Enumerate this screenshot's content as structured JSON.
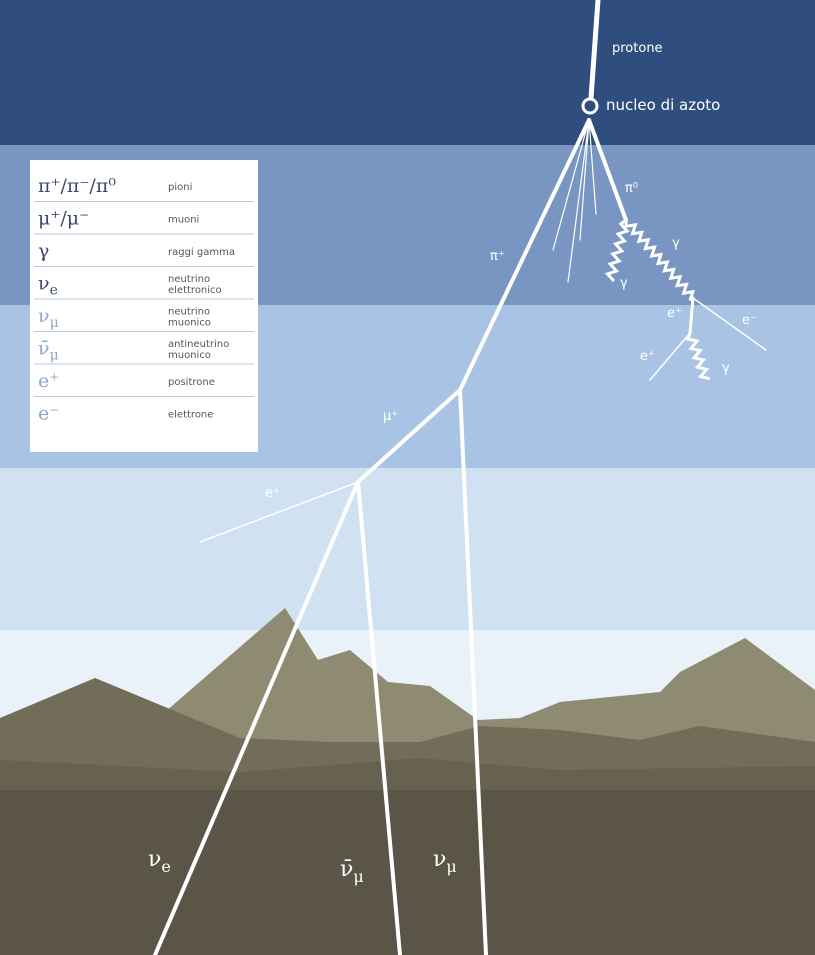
{
  "labels": {
    "proton": "protone",
    "nucleus": "nucleo di azoto",
    "pi0": "π⁰",
    "piplus": "π⁺",
    "gamma1": "γ",
    "gamma2": "γ",
    "eplus1": "e⁺",
    "eminus1": "e⁻",
    "eplus2": "e⁺",
    "gamma3": "γ",
    "muplus": "μ⁺",
    "eplus3": "e⁺",
    "nu_e": {
      "base": "ν",
      "sub": "e"
    },
    "nubar_mu": {
      "base": "ν̄",
      "sub": "μ"
    },
    "nu_mu": {
      "base": "ν",
      "sub": "μ"
    }
  },
  "legend": [
    {
      "symbol": {
        "base": "π⁺/π⁻/π⁰",
        "sub": ""
      },
      "desc": [
        "pioni"
      ]
    },
    {
      "symbol": {
        "base": "μ⁺/μ⁻",
        "sub": ""
      },
      "desc": [
        "muoni"
      ]
    },
    {
      "symbol": {
        "base": "γ",
        "sub": ""
      },
      "desc": [
        "raggi gamma"
      ]
    },
    {
      "symbol": {
        "base": "ν",
        "sub": "e"
      },
      "desc": [
        "neutrino",
        "elettronico"
      ]
    },
    {
      "symbol": {
        "base": "ν",
        "sub": "μ"
      },
      "desc": [
        "neutrino",
        "muonico"
      ]
    },
    {
      "symbol": {
        "base": "ν̄",
        "sub": "μ"
      },
      "desc": [
        "antineutrino",
        "muonico"
      ]
    },
    {
      "symbol": {
        "base": "e⁺",
        "sub": ""
      },
      "desc": [
        "positrone"
      ]
    },
    {
      "symbol": {
        "base": "e⁻",
        "sub": ""
      },
      "desc": [
        "elettrone"
      ]
    }
  ]
}
